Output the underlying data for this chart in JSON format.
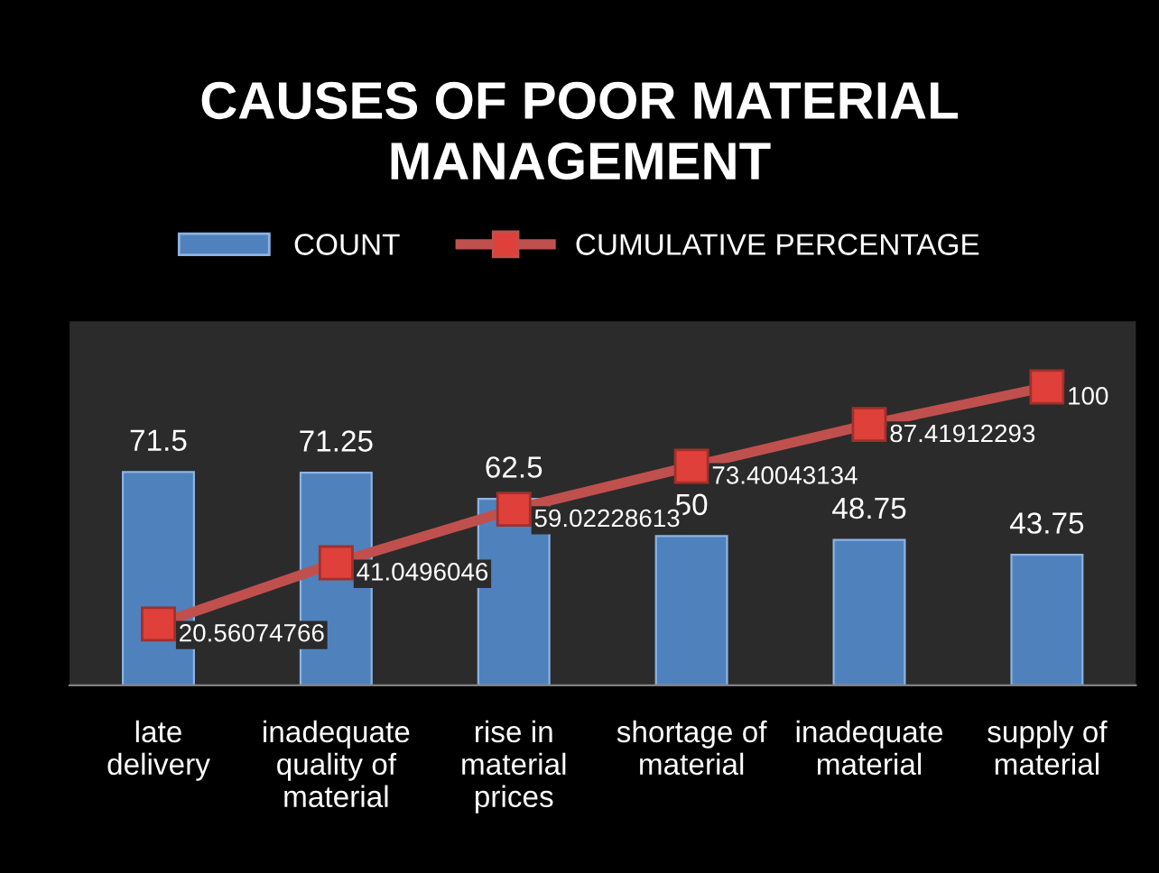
{
  "chart_data": {
    "type": "bar",
    "title": "CAUSES OF POOR MATERIAL\nMANAGEMENT",
    "categories": [
      "late\ndelivery",
      "inadequate\nquality of\nmaterial",
      "rise in\nmaterial\nprices",
      "shortage of\nmaterial",
      "inadequate\nmaterial",
      "supply of\nmaterial"
    ],
    "series": [
      {
        "name": "COUNT",
        "color": "#4f81bd",
        "values": [
          71.5,
          71.25,
          62.5,
          50,
          48.75,
          43.75
        ]
      },
      {
        "name": "CUMULATIVE PERCENTAGE",
        "type": "line",
        "color": "#c0504d",
        "marker": "square",
        "values": [
          20.56074766,
          41.0496046,
          59.02228613,
          73.40043134,
          87.41912293,
          100
        ]
      }
    ],
    "ylim": [
      0,
      122
    ],
    "data_labels": true,
    "legend": "top",
    "grid": false,
    "tick_labels": "x"
  }
}
